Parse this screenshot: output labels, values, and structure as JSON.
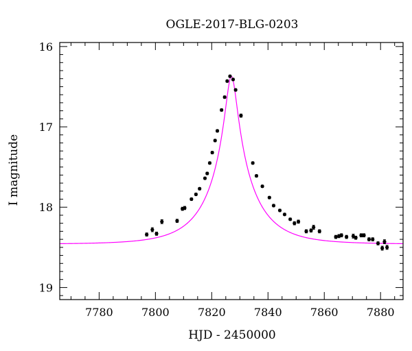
{
  "chart_data": {
    "type": "scatter",
    "title": "OGLE-2017-BLG-0203",
    "xlabel": "HJD - 2450000",
    "ylabel": "I magnitude",
    "xlim": [
      7766,
      7888
    ],
    "ylim": [
      19.15,
      15.95
    ],
    "y_inverted": true,
    "x_ticks": [
      7780,
      7800,
      7820,
      7840,
      7860,
      7880
    ],
    "y_ticks": [
      16,
      17,
      18,
      19
    ],
    "x_tick_labels": [
      "7780",
      "7800",
      "7820",
      "7840",
      "7860",
      "7880"
    ],
    "y_tick_labels": [
      "16",
      "17",
      "18",
      "19"
    ],
    "colors": {
      "model": "#ff00ff",
      "points": "#000000"
    },
    "model": {
      "t0": 7827.0,
      "u0": 0.12,
      "tE": 15.8,
      "baseline": 18.46
    },
    "series": [
      {
        "type": "scatter",
        "x": [
          7796.9,
          7798.9,
          7800.4,
          7802.3,
          7807.7,
          7809.6,
          7810.4,
          7812.8,
          7814.4,
          7815.7,
          7817.6,
          7818.4,
          7819.3,
          7820.2,
          7821.2,
          7822.0,
          7823.5,
          7824.6,
          7825.5,
          7826.5,
          7827.6,
          7828.5,
          7830.4,
          7834.6,
          7835.9,
          7838.0,
          7840.5,
          7842.0,
          7844.2,
          7845.9,
          7847.9,
          7849.4,
          7850.8,
          7853.6,
          7855.3,
          7856.2,
          7858.3,
          7864.1,
          7865.2,
          7866.1,
          7867.9,
          7870.3,
          7871.2,
          7873.1,
          7874.1,
          7875.9,
          7877.2,
          7879.1,
          7880.6,
          7881.4,
          7882.3
        ],
        "y": [
          18.34,
          18.28,
          18.33,
          18.18,
          18.17,
          18.02,
          18.01,
          17.9,
          17.84,
          17.77,
          17.64,
          17.58,
          17.45,
          17.32,
          17.17,
          17.05,
          16.79,
          16.63,
          16.43,
          16.37,
          16.41,
          16.54,
          16.86,
          17.45,
          17.61,
          17.74,
          17.88,
          17.98,
          18.04,
          18.09,
          18.15,
          18.2,
          18.18,
          18.3,
          18.29,
          18.25,
          18.3,
          18.37,
          18.36,
          18.35,
          18.37,
          18.36,
          18.38,
          18.35,
          18.35,
          18.4,
          18.4,
          18.45,
          18.51,
          18.43,
          18.5
        ],
        "yerr": [
          0.02,
          0.025,
          0.02,
          0.025,
          0.02,
          0.02,
          0.02,
          0.015,
          0.015,
          0.015,
          0.015,
          0.015,
          0.015,
          0.015,
          0.015,
          0.015,
          0.015,
          0.015,
          0.015,
          0.015,
          0.015,
          0.015,
          0.02,
          0.015,
          0.015,
          0.015,
          0.015,
          0.015,
          0.015,
          0.015,
          0.015,
          0.02,
          0.02,
          0.02,
          0.02,
          0.025,
          0.02,
          0.02,
          0.02,
          0.02,
          0.02,
          0.025,
          0.02,
          0.02,
          0.02,
          0.02,
          0.02,
          0.02,
          0.025,
          0.025,
          0.025
        ]
      }
    ],
    "grid": false,
    "legend": "none"
  }
}
